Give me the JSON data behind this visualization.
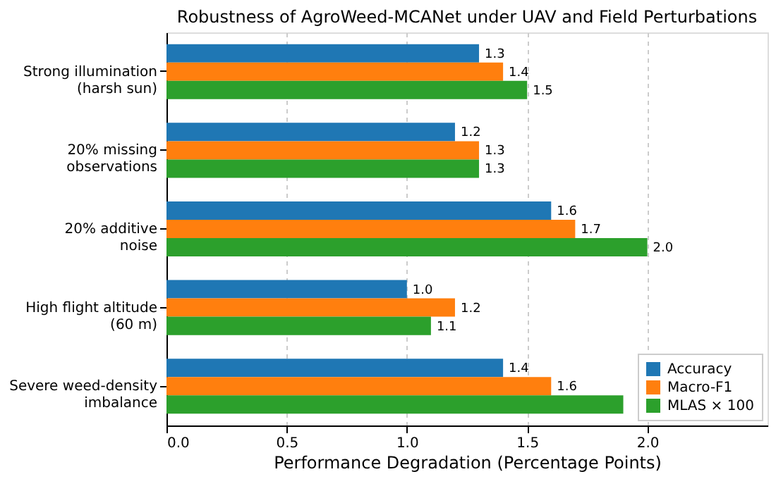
{
  "chart_data": {
    "type": "bar",
    "orientation": "horizontal",
    "title": "Robustness of AgroWeed-MCANet under UAV and Field Perturbations",
    "xlabel": "Performance Degradation (Percentage Points)",
    "categories": [
      "Strong illumination\n(harsh sun)",
      "20% missing\nobservations",
      "20% additive\nnoise",
      "High flight altitude\n(60 m)",
      "Severe weed-density\nimbalance"
    ],
    "series": [
      {
        "name": "Accuracy",
        "color": "#1f77b4",
        "values": [
          1.3,
          1.2,
          1.6,
          1.0,
          1.4
        ],
        "value_labels": [
          "1.3",
          "1.2",
          "1.6",
          "1.0",
          "1.4"
        ]
      },
      {
        "name": "Macro-F1",
        "color": "#ff7f0e",
        "values": [
          1.4,
          1.3,
          1.7,
          1.2,
          1.6
        ],
        "value_labels": [
          "1.4",
          "1.3",
          "1.7",
          "1.2",
          "1.6"
        ]
      },
      {
        "name": "MLAS × 100",
        "color": "#2ca02c",
        "values": [
          1.5,
          1.3,
          2.0,
          1.1,
          1.9
        ],
        "value_labels": [
          "1.5",
          "1.3",
          "2.0",
          "1.1",
          null
        ]
      }
    ],
    "xlim": [
      0,
      2.5
    ],
    "xticks": [
      {
        "value": 0,
        "label": "0.0"
      },
      {
        "value": 0.5,
        "label": "0.5"
      },
      {
        "value": 1,
        "label": "1.0"
      },
      {
        "value": 1.5,
        "label": "1.5"
      },
      {
        "value": 2,
        "label": "2.0"
      }
    ],
    "grid": "x",
    "legend": "bottom right"
  }
}
